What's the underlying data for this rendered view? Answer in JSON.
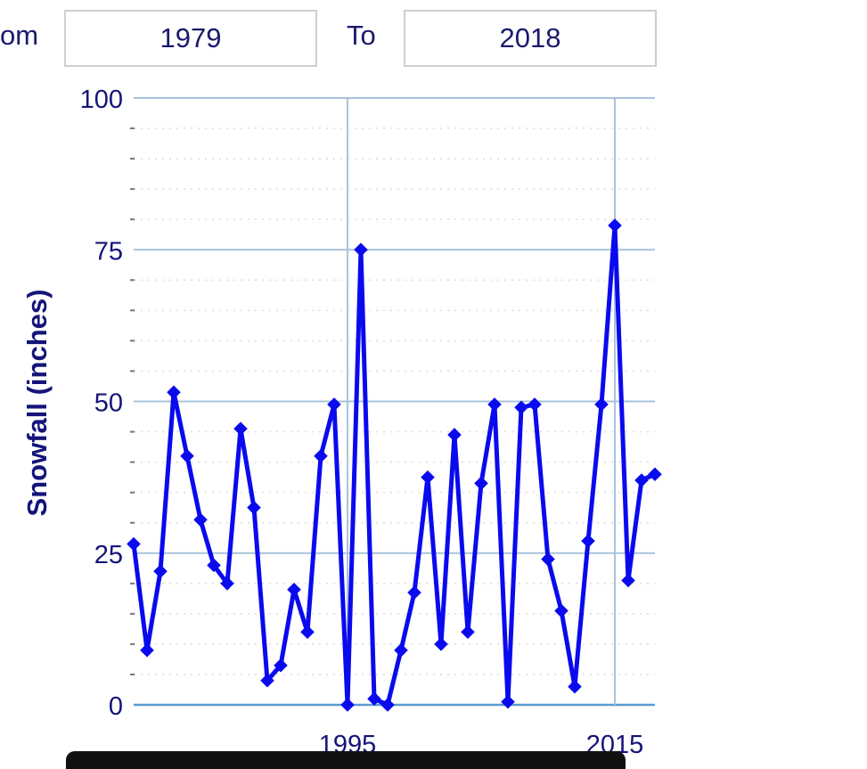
{
  "range": {
    "from_label": "om",
    "from_value": "1979",
    "to_label": "To",
    "to_value": "2018"
  },
  "colors": {
    "line": "#0a0aee",
    "grid": "#a9c3dc",
    "text": "#14147a"
  },
  "chart_data": {
    "type": "line",
    "title": "",
    "xlabel": "",
    "ylabel": "Snowfall (inches)",
    "ylim": [
      0,
      100
    ],
    "xlim": [
      1979,
      2018
    ],
    "yticks": [
      0,
      25,
      50,
      75,
      100
    ],
    "ytick_labels": [
      "0",
      "25",
      "50",
      "75",
      "100"
    ],
    "xticks": [
      1995,
      2015
    ],
    "xtick_labels": [
      "1995",
      "2015"
    ],
    "grid": true,
    "legend": "none",
    "series": [
      {
        "x": [
          1979,
          1980,
          1981,
          1982,
          1983,
          1984,
          1985,
          1986,
          1987,
          1988,
          1989,
          1990,
          1991,
          1992,
          1993,
          1994,
          1995,
          1996,
          1997,
          1998,
          1999,
          2000,
          2001,
          2002,
          2003,
          2004,
          2005,
          2006,
          2007,
          2008,
          2009,
          2010,
          2011,
          2012,
          2013,
          2014,
          2015,
          2016,
          2017,
          2018
        ],
        "values": [
          26.5,
          9.0,
          22.0,
          51.5,
          41.0,
          30.5,
          23.0,
          20.0,
          45.5,
          32.5,
          4.0,
          6.5,
          19.0,
          12.0,
          41.0,
          49.5,
          0.0,
          75.0,
          1.0,
          0.0,
          9.0,
          18.5,
          37.5,
          10.0,
          44.5,
          12.0,
          36.5,
          49.5,
          0.5,
          49.0,
          49.5,
          24.0,
          15.5,
          3.0,
          27.0,
          49.5,
          79.0,
          20.5,
          37.0,
          38.0
        ]
      }
    ]
  }
}
